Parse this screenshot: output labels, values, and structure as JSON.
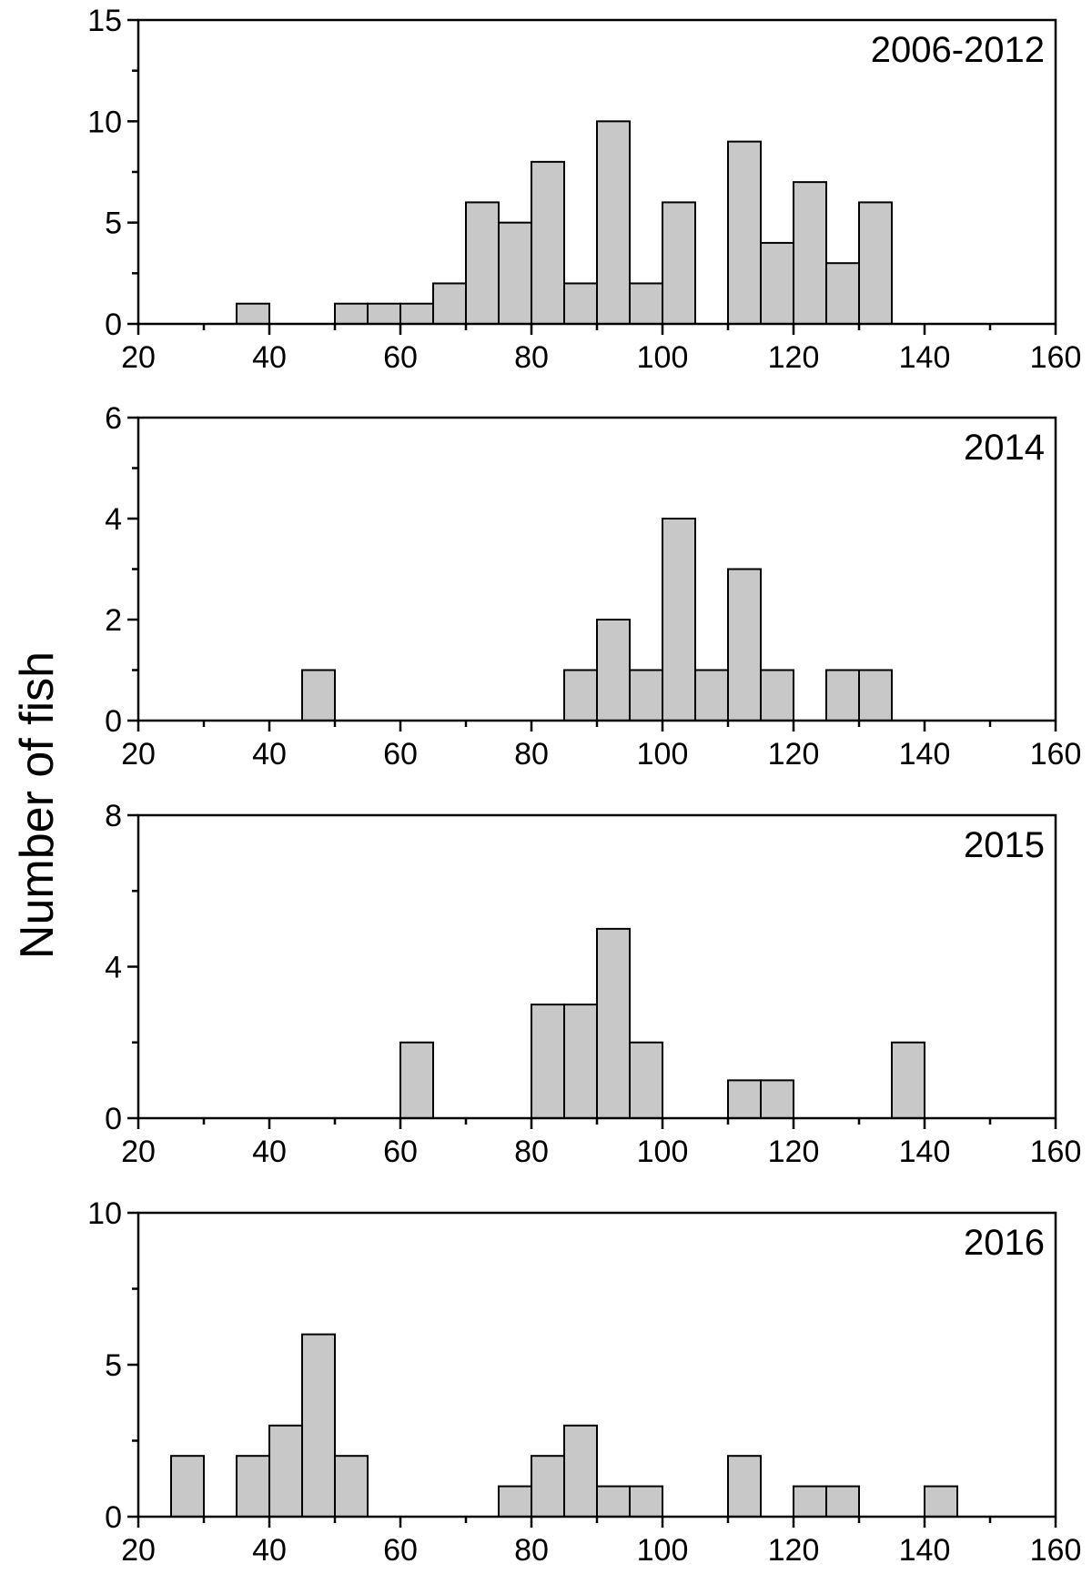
{
  "figure": {
    "ylabel": "Number of fish"
  },
  "chart_data": [
    {
      "type": "bar",
      "title": "2006-2012",
      "xlabel": "",
      "ylabel": "Number of fish",
      "xlim": [
        20,
        160
      ],
      "ylim": [
        0,
        15
      ],
      "x_ticks": [
        20,
        40,
        60,
        80,
        100,
        120,
        140,
        160
      ],
      "y_ticks": [
        0,
        5,
        10,
        15
      ],
      "bin_width": 5,
      "bins": [
        {
          "start": 35,
          "count": 1
        },
        {
          "start": 50,
          "count": 1
        },
        {
          "start": 55,
          "count": 1
        },
        {
          "start": 60,
          "count": 1
        },
        {
          "start": 65,
          "count": 2
        },
        {
          "start": 70,
          "count": 6
        },
        {
          "start": 75,
          "count": 5
        },
        {
          "start": 80,
          "count": 8
        },
        {
          "start": 85,
          "count": 2
        },
        {
          "start": 90,
          "count": 10
        },
        {
          "start": 95,
          "count": 2
        },
        {
          "start": 100,
          "count": 6
        },
        {
          "start": 110,
          "count": 9
        },
        {
          "start": 115,
          "count": 4
        },
        {
          "start": 120,
          "count": 7
        },
        {
          "start": 125,
          "count": 3
        },
        {
          "start": 130,
          "count": 6
        }
      ]
    },
    {
      "type": "bar",
      "title": "2014",
      "xlabel": "",
      "ylabel": "Number of fish",
      "xlim": [
        20,
        160
      ],
      "ylim": [
        0,
        6
      ],
      "x_ticks": [
        20,
        40,
        60,
        80,
        100,
        120,
        140,
        160
      ],
      "y_ticks": [
        0,
        2,
        4,
        6
      ],
      "bin_width": 5,
      "bins": [
        {
          "start": 45,
          "count": 1
        },
        {
          "start": 85,
          "count": 1
        },
        {
          "start": 90,
          "count": 2
        },
        {
          "start": 95,
          "count": 1
        },
        {
          "start": 100,
          "count": 4
        },
        {
          "start": 105,
          "count": 1
        },
        {
          "start": 110,
          "count": 3
        },
        {
          "start": 115,
          "count": 1
        },
        {
          "start": 125,
          "count": 1
        },
        {
          "start": 130,
          "count": 1
        }
      ]
    },
    {
      "type": "bar",
      "title": "2015",
      "xlabel": "",
      "ylabel": "Number of fish",
      "xlim": [
        20,
        160
      ],
      "ylim": [
        0,
        8
      ],
      "x_ticks": [
        20,
        40,
        60,
        80,
        100,
        120,
        140,
        160
      ],
      "y_ticks": [
        0,
        4,
        8
      ],
      "bin_width": 5,
      "bins": [
        {
          "start": 60,
          "count": 2
        },
        {
          "start": 80,
          "count": 3
        },
        {
          "start": 85,
          "count": 3
        },
        {
          "start": 90,
          "count": 5
        },
        {
          "start": 95,
          "count": 2
        },
        {
          "start": 110,
          "count": 1
        },
        {
          "start": 115,
          "count": 1
        },
        {
          "start": 135,
          "count": 2
        }
      ]
    },
    {
      "type": "bar",
      "title": "2016",
      "xlabel": "",
      "ylabel": "Number of fish",
      "xlim": [
        20,
        160
      ],
      "ylim": [
        0,
        10
      ],
      "x_ticks": [
        20,
        40,
        60,
        80,
        100,
        120,
        140,
        160
      ],
      "y_ticks": [
        0,
        5,
        10
      ],
      "bin_width": 5,
      "bins": [
        {
          "start": 25,
          "count": 2
        },
        {
          "start": 35,
          "count": 2
        },
        {
          "start": 40,
          "count": 3
        },
        {
          "start": 45,
          "count": 6
        },
        {
          "start": 50,
          "count": 2
        },
        {
          "start": 75,
          "count": 1
        },
        {
          "start": 80,
          "count": 2
        },
        {
          "start": 85,
          "count": 3
        },
        {
          "start": 90,
          "count": 1
        },
        {
          "start": 95,
          "count": 1
        },
        {
          "start": 110,
          "count": 2
        },
        {
          "start": 120,
          "count": 1
        },
        {
          "start": 125,
          "count": 1
        },
        {
          "start": 140,
          "count": 1
        }
      ]
    }
  ]
}
